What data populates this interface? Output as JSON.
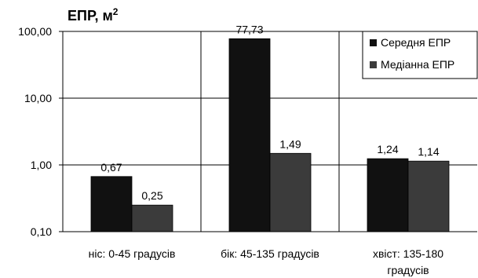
{
  "chart_data": {
    "type": "bar",
    "title": "",
    "ylabel": "ЕПР, м",
    "ylabel_superscript": "2",
    "yscale": "log",
    "ylim": [
      0.1,
      100
    ],
    "yticks": [
      "0,10",
      "1,00",
      "10,00",
      "100,00"
    ],
    "ytick_values": [
      0.1,
      1,
      10,
      100
    ],
    "categories": [
      [
        "ніс:  0-45 градусів"
      ],
      [
        "бік: 45-135 градусів"
      ],
      [
        "хвіст: 135-180",
        "градусів"
      ]
    ],
    "series": [
      {
        "name": "Середня ЕПР",
        "values": [
          0.67,
          77.73,
          1.24
        ],
        "labels": [
          "0,67",
          "77,73",
          "1,24"
        ],
        "color": "#111111"
      },
      {
        "name": "Медіанна ЕПР",
        "values": [
          0.25,
          1.49,
          1.14
        ],
        "labels": [
          "0,25",
          "1,49",
          "1,14"
        ],
        "color": "#3b3b3b"
      }
    ],
    "legend_position": "top-right",
    "grid": true
  }
}
